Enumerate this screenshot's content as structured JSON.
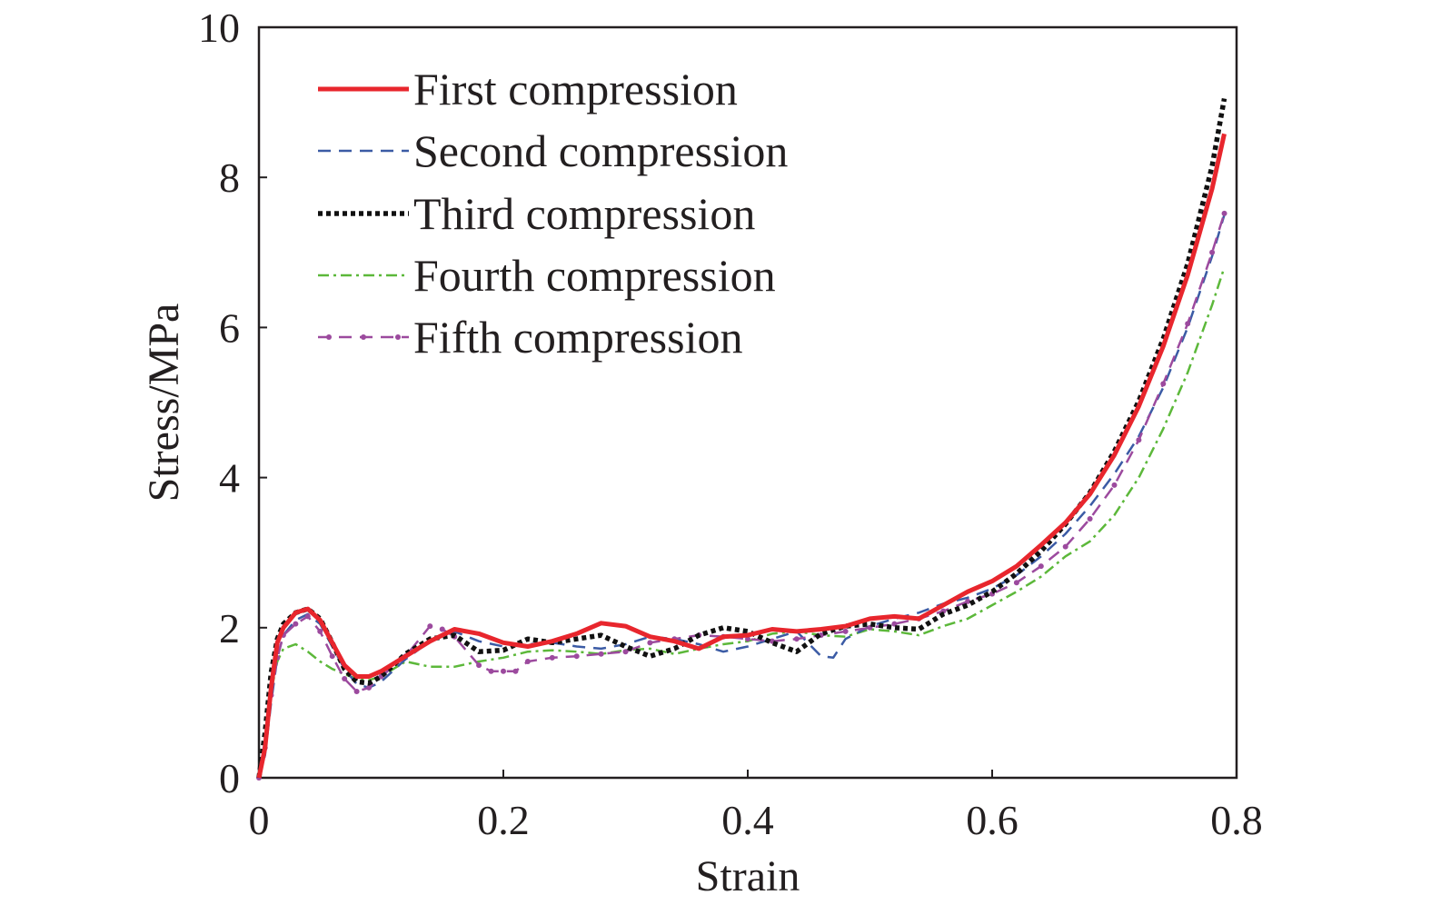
{
  "chart_data": {
    "type": "line",
    "xlabel": "Strain",
    "ylabel": "Stress/MPa",
    "xlim": [
      0,
      0.8
    ],
    "ylim": [
      0,
      10
    ],
    "xticks": [
      "0",
      "0.2",
      "0.4",
      "0.6",
      "0.8"
    ],
    "yticks": [
      "0",
      "2",
      "4",
      "6",
      "8",
      "10"
    ],
    "grid": false,
    "legend_position": "top-left",
    "series": [
      {
        "name": "First compression",
        "color": "#e8262d",
        "style": "solid",
        "points": [
          [
            0,
            0
          ],
          [
            0.005,
            0.4
          ],
          [
            0.01,
            1.2
          ],
          [
            0.015,
            1.8
          ],
          [
            0.02,
            2.0
          ],
          [
            0.03,
            2.2
          ],
          [
            0.04,
            2.25
          ],
          [
            0.05,
            2.1
          ],
          [
            0.06,
            1.8
          ],
          [
            0.07,
            1.5
          ],
          [
            0.08,
            1.35
          ],
          [
            0.09,
            1.35
          ],
          [
            0.1,
            1.42
          ],
          [
            0.12,
            1.62
          ],
          [
            0.14,
            1.82
          ],
          [
            0.16,
            1.98
          ],
          [
            0.18,
            1.92
          ],
          [
            0.2,
            1.8
          ],
          [
            0.22,
            1.75
          ],
          [
            0.24,
            1.82
          ],
          [
            0.26,
            1.92
          ],
          [
            0.28,
            2.06
          ],
          [
            0.3,
            2.02
          ],
          [
            0.32,
            1.88
          ],
          [
            0.34,
            1.82
          ],
          [
            0.36,
            1.72
          ],
          [
            0.38,
            1.88
          ],
          [
            0.4,
            1.9
          ],
          [
            0.42,
            1.98
          ],
          [
            0.44,
            1.95
          ],
          [
            0.46,
            1.98
          ],
          [
            0.48,
            2.02
          ],
          [
            0.5,
            2.12
          ],
          [
            0.52,
            2.15
          ],
          [
            0.54,
            2.12
          ],
          [
            0.56,
            2.3
          ],
          [
            0.58,
            2.48
          ],
          [
            0.6,
            2.62
          ],
          [
            0.62,
            2.82
          ],
          [
            0.64,
            3.1
          ],
          [
            0.66,
            3.4
          ],
          [
            0.68,
            3.78
          ],
          [
            0.7,
            4.3
          ],
          [
            0.72,
            4.95
          ],
          [
            0.74,
            5.75
          ],
          [
            0.76,
            6.7
          ],
          [
            0.78,
            7.85
          ],
          [
            0.79,
            8.58
          ]
        ]
      },
      {
        "name": "Second compression",
        "color": "#3b5ba5",
        "style": "dashed",
        "points": [
          [
            0,
            0
          ],
          [
            0.005,
            0.3
          ],
          [
            0.01,
            1.0
          ],
          [
            0.015,
            1.6
          ],
          [
            0.02,
            1.9
          ],
          [
            0.03,
            2.1
          ],
          [
            0.04,
            2.18
          ],
          [
            0.05,
            2.05
          ],
          [
            0.06,
            1.75
          ],
          [
            0.07,
            1.45
          ],
          [
            0.08,
            1.25
          ],
          [
            0.09,
            1.2
          ],
          [
            0.1,
            1.28
          ],
          [
            0.12,
            1.58
          ],
          [
            0.14,
            1.82
          ],
          [
            0.16,
            1.95
          ],
          [
            0.18,
            1.82
          ],
          [
            0.2,
            1.75
          ],
          [
            0.22,
            1.78
          ],
          [
            0.24,
            1.8
          ],
          [
            0.26,
            1.75
          ],
          [
            0.28,
            1.72
          ],
          [
            0.3,
            1.78
          ],
          [
            0.32,
            1.88
          ],
          [
            0.34,
            1.85
          ],
          [
            0.36,
            1.78
          ],
          [
            0.38,
            1.68
          ],
          [
            0.4,
            1.75
          ],
          [
            0.42,
            1.85
          ],
          [
            0.44,
            1.95
          ],
          [
            0.46,
            1.62
          ],
          [
            0.47,
            1.6
          ],
          [
            0.48,
            1.85
          ],
          [
            0.5,
            2.02
          ],
          [
            0.52,
            2.12
          ],
          [
            0.54,
            2.2
          ],
          [
            0.56,
            2.32
          ],
          [
            0.58,
            2.4
          ],
          [
            0.6,
            2.52
          ],
          [
            0.62,
            2.7
          ],
          [
            0.64,
            2.95
          ],
          [
            0.66,
            3.25
          ],
          [
            0.68,
            3.62
          ],
          [
            0.7,
            4.05
          ],
          [
            0.72,
            4.55
          ],
          [
            0.74,
            5.2
          ],
          [
            0.76,
            6.0
          ],
          [
            0.78,
            6.95
          ],
          [
            0.79,
            7.5
          ]
        ]
      },
      {
        "name": "Third compression",
        "color": "#111111",
        "style": "dotted",
        "points": [
          [
            0,
            0
          ],
          [
            0.005,
            0.6
          ],
          [
            0.01,
            1.4
          ],
          [
            0.015,
            1.85
          ],
          [
            0.02,
            2.05
          ],
          [
            0.03,
            2.2
          ],
          [
            0.04,
            2.25
          ],
          [
            0.05,
            2.12
          ],
          [
            0.06,
            1.8
          ],
          [
            0.07,
            1.45
          ],
          [
            0.08,
            1.28
          ],
          [
            0.09,
            1.26
          ],
          [
            0.1,
            1.35
          ],
          [
            0.12,
            1.65
          ],
          [
            0.14,
            1.85
          ],
          [
            0.16,
            1.9
          ],
          [
            0.18,
            1.68
          ],
          [
            0.2,
            1.7
          ],
          [
            0.22,
            1.85
          ],
          [
            0.24,
            1.8
          ],
          [
            0.26,
            1.85
          ],
          [
            0.28,
            1.9
          ],
          [
            0.3,
            1.75
          ],
          [
            0.32,
            1.62
          ],
          [
            0.34,
            1.72
          ],
          [
            0.36,
            1.9
          ],
          [
            0.38,
            2.0
          ],
          [
            0.4,
            1.95
          ],
          [
            0.42,
            1.8
          ],
          [
            0.44,
            1.68
          ],
          [
            0.46,
            1.92
          ],
          [
            0.48,
            2.02
          ],
          [
            0.5,
            2.05
          ],
          [
            0.52,
            2.0
          ],
          [
            0.54,
            1.98
          ],
          [
            0.56,
            2.18
          ],
          [
            0.58,
            2.3
          ],
          [
            0.6,
            2.48
          ],
          [
            0.62,
            2.72
          ],
          [
            0.64,
            3.02
          ],
          [
            0.66,
            3.38
          ],
          [
            0.68,
            3.8
          ],
          [
            0.7,
            4.35
          ],
          [
            0.72,
            5.02
          ],
          [
            0.74,
            5.85
          ],
          [
            0.76,
            6.85
          ],
          [
            0.78,
            8.15
          ],
          [
            0.79,
            9.05
          ]
        ]
      },
      {
        "name": "Fourth compression",
        "color": "#5cb83a",
        "style": "dash-dot",
        "points": [
          [
            0,
            0
          ],
          [
            0.005,
            0.5
          ],
          [
            0.01,
            1.15
          ],
          [
            0.015,
            1.55
          ],
          [
            0.02,
            1.72
          ],
          [
            0.03,
            1.78
          ],
          [
            0.04,
            1.68
          ],
          [
            0.05,
            1.55
          ],
          [
            0.06,
            1.45
          ],
          [
            0.07,
            1.38
          ],
          [
            0.08,
            1.32
          ],
          [
            0.09,
            1.3
          ],
          [
            0.1,
            1.35
          ],
          [
            0.12,
            1.55
          ],
          [
            0.14,
            1.48
          ],
          [
            0.16,
            1.48
          ],
          [
            0.18,
            1.55
          ],
          [
            0.2,
            1.6
          ],
          [
            0.22,
            1.68
          ],
          [
            0.24,
            1.7
          ],
          [
            0.26,
            1.68
          ],
          [
            0.28,
            1.65
          ],
          [
            0.3,
            1.7
          ],
          [
            0.32,
            1.72
          ],
          [
            0.34,
            1.65
          ],
          [
            0.36,
            1.72
          ],
          [
            0.38,
            1.78
          ],
          [
            0.4,
            1.82
          ],
          [
            0.42,
            1.92
          ],
          [
            0.44,
            1.95
          ],
          [
            0.46,
            1.9
          ],
          [
            0.48,
            1.88
          ],
          [
            0.5,
            1.98
          ],
          [
            0.52,
            1.95
          ],
          [
            0.54,
            1.9
          ],
          [
            0.56,
            2.02
          ],
          [
            0.58,
            2.12
          ],
          [
            0.6,
            2.3
          ],
          [
            0.62,
            2.48
          ],
          [
            0.64,
            2.68
          ],
          [
            0.66,
            2.95
          ],
          [
            0.68,
            3.15
          ],
          [
            0.7,
            3.5
          ],
          [
            0.72,
            4.0
          ],
          [
            0.74,
            4.65
          ],
          [
            0.76,
            5.4
          ],
          [
            0.78,
            6.3
          ],
          [
            0.79,
            6.8
          ]
        ]
      },
      {
        "name": "Fifth compression",
        "color": "#9c4a9e",
        "style": "dash-marker",
        "points": [
          [
            0,
            0
          ],
          [
            0.005,
            0.4
          ],
          [
            0.01,
            1.1
          ],
          [
            0.015,
            1.6
          ],
          [
            0.02,
            1.9
          ],
          [
            0.03,
            2.05
          ],
          [
            0.04,
            2.15
          ],
          [
            0.05,
            1.95
          ],
          [
            0.06,
            1.62
          ],
          [
            0.07,
            1.32
          ],
          [
            0.08,
            1.15
          ],
          [
            0.09,
            1.2
          ],
          [
            0.1,
            1.35
          ],
          [
            0.12,
            1.62
          ],
          [
            0.14,
            2.02
          ],
          [
            0.15,
            1.98
          ],
          [
            0.16,
            1.88
          ],
          [
            0.18,
            1.5
          ],
          [
            0.19,
            1.42
          ],
          [
            0.2,
            1.42
          ],
          [
            0.21,
            1.42
          ],
          [
            0.22,
            1.55
          ],
          [
            0.24,
            1.6
          ],
          [
            0.26,
            1.62
          ],
          [
            0.28,
            1.65
          ],
          [
            0.3,
            1.68
          ],
          [
            0.32,
            1.8
          ],
          [
            0.34,
            1.85
          ],
          [
            0.36,
            1.9
          ],
          [
            0.38,
            1.88
          ],
          [
            0.4,
            1.85
          ],
          [
            0.42,
            1.82
          ],
          [
            0.44,
            1.85
          ],
          [
            0.46,
            1.9
          ],
          [
            0.48,
            1.95
          ],
          [
            0.5,
            2.0
          ],
          [
            0.52,
            2.05
          ],
          [
            0.54,
            2.12
          ],
          [
            0.56,
            2.22
          ],
          [
            0.58,
            2.35
          ],
          [
            0.6,
            2.45
          ],
          [
            0.62,
            2.6
          ],
          [
            0.64,
            2.82
          ],
          [
            0.66,
            3.08
          ],
          [
            0.68,
            3.45
          ],
          [
            0.7,
            3.9
          ],
          [
            0.72,
            4.5
          ],
          [
            0.74,
            5.25
          ],
          [
            0.76,
            6.05
          ],
          [
            0.78,
            7.0
          ],
          [
            0.79,
            7.52
          ]
        ]
      }
    ]
  }
}
